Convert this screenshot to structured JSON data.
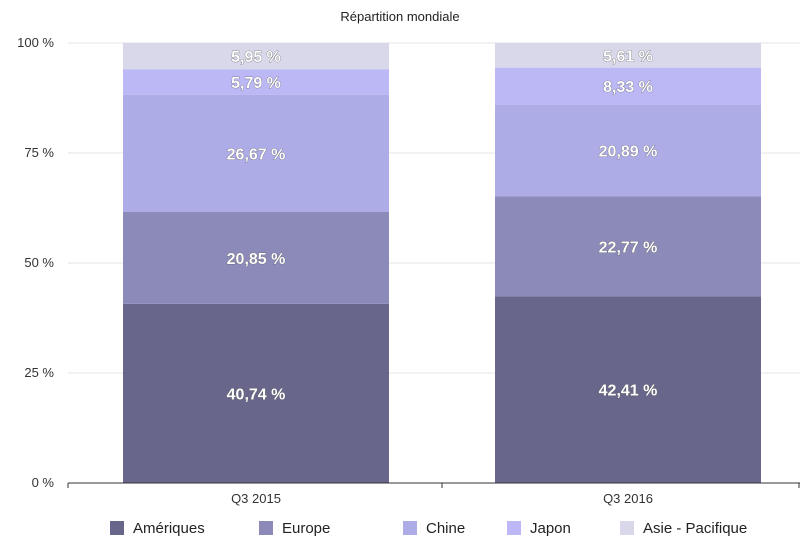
{
  "chart_data": {
    "type": "bar",
    "stacked": true,
    "title": "Répartition mondiale",
    "categories": [
      "Q3 2015",
      "Q3 2016"
    ],
    "ylim": [
      0,
      100
    ],
    "yticks": [
      "0 %",
      "25 %",
      "50 %",
      "75 %",
      "100 %"
    ],
    "ytick_values": [
      0,
      25,
      50,
      75,
      100
    ],
    "grid": true,
    "legend_position": "bottom",
    "series": [
      {
        "name": "Amériques",
        "color": "#68668a",
        "values": [
          40.74,
          42.41
        ],
        "labels": [
          "40,74 %",
          "42,41 %"
        ]
      },
      {
        "name": "Europe",
        "color": "#8b8ab9",
        "values": [
          20.85,
          22.77
        ],
        "labels": [
          "20,85 %",
          "22,77 %"
        ]
      },
      {
        "name": "Chine",
        "color": "#aeace6",
        "values": [
          26.67,
          20.89
        ],
        "labels": [
          "26,67 %",
          "20,89 %"
        ]
      },
      {
        "name": "Japon",
        "color": "#bbb8f5",
        "values": [
          5.79,
          8.33
        ],
        "labels": [
          "5,79 %",
          "8,33 %"
        ]
      },
      {
        "name": "Asie - Pacifique",
        "color": "#d9d8ea",
        "values": [
          5.95,
          5.61
        ],
        "labels": [
          "5,95 %",
          "5,61 %"
        ]
      }
    ]
  }
}
